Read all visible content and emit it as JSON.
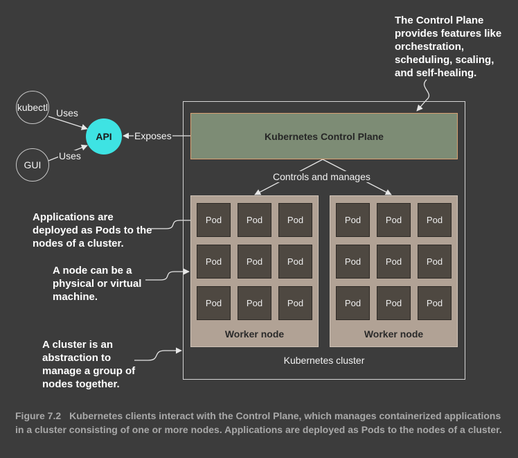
{
  "notes": {
    "control_plane": "The Control Plane\nprovides features like\norchestration,\nscheduling, scaling,\nand self-healing.",
    "pods": "Applications are\ndeployed as Pods to the\nnodes of a cluster.",
    "node": "A node can be a\nphysical or virtual\nmachine.",
    "cluster": "A cluster is an\nabstraction to\nmanage a group of\nnodes together."
  },
  "clients": [
    {
      "label": "kubectl",
      "edge_label": "Uses"
    },
    {
      "label": "GUI",
      "edge_label": "Uses"
    }
  ],
  "api": {
    "label": "API",
    "edge_label": "Exposes"
  },
  "control_plane": {
    "label": "Kubernetes Control Plane",
    "edge_label": "Controls and manages"
  },
  "nodes": [
    {
      "label": "Worker node",
      "pods": [
        "Pod",
        "Pod",
        "Pod",
        "Pod",
        "Pod",
        "Pod",
        "Pod",
        "Pod",
        "Pod"
      ]
    },
    {
      "label": "Worker node",
      "pods": [
        "Pod",
        "Pod",
        "Pod",
        "Pod",
        "Pod",
        "Pod",
        "Pod",
        "Pod",
        "Pod"
      ]
    }
  ],
  "cluster": {
    "label": "Kubernetes cluster"
  },
  "caption": {
    "figure": "Figure 7.2",
    "text": "Kubernetes clients interact with the Control Plane, which manages containerized applications in a cluster consisting of one or more nodes. Applications are deployed as Pods to the nodes of a cluster."
  }
}
